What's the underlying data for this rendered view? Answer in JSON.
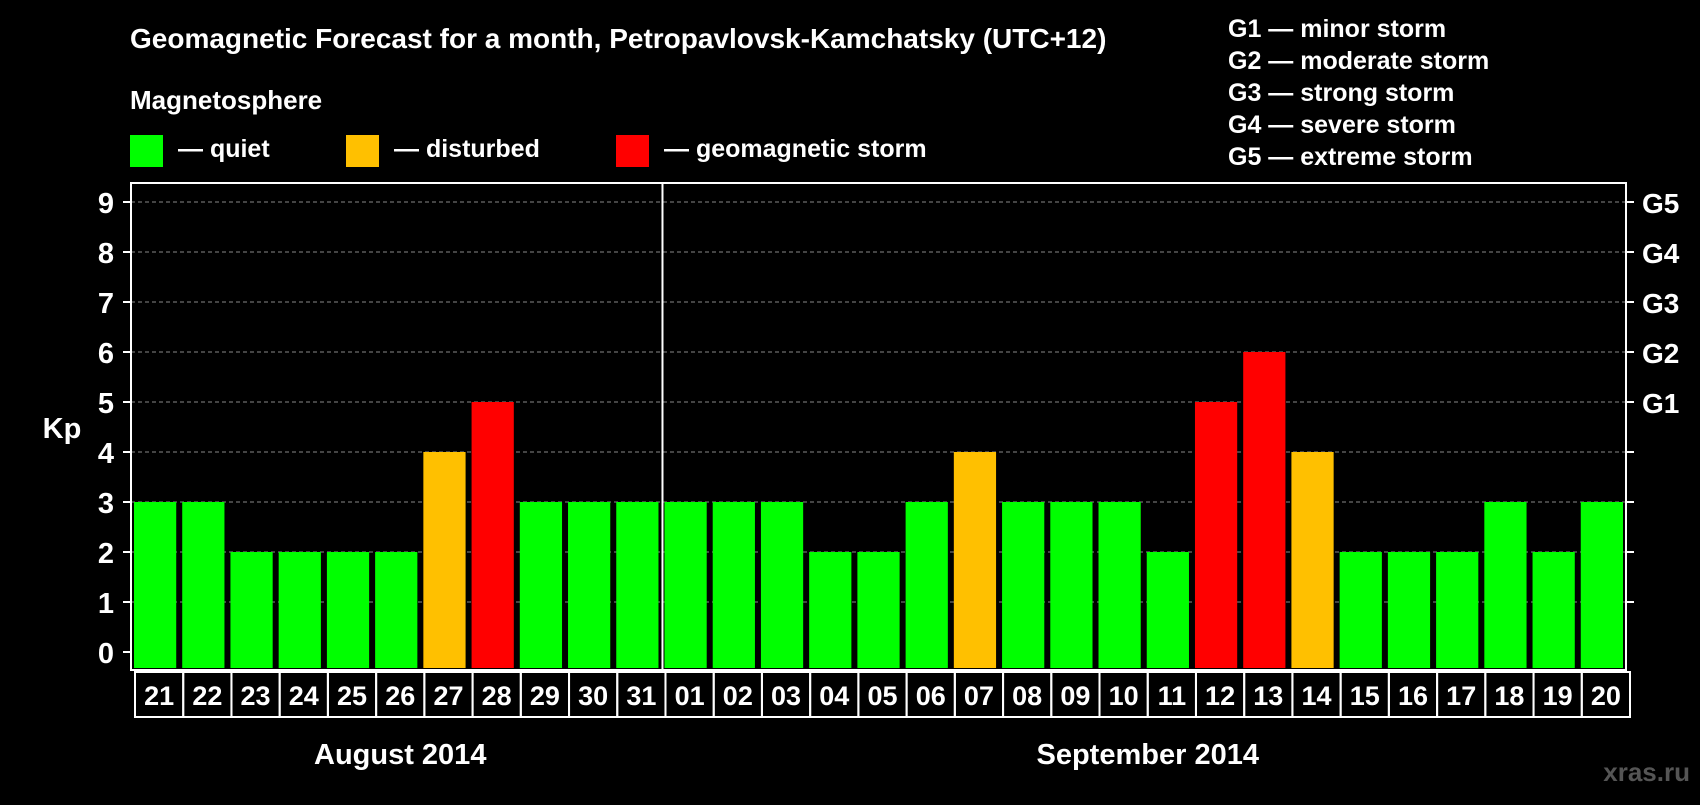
{
  "chart_data": {
    "type": "bar",
    "title": "Geomagnetic Forecast for a month, Petropavlovsk-Kamchatsky (UTC+12)",
    "legend_heading": "Magnetosphere",
    "legend": [
      {
        "label": "— quiet",
        "color": "#00ff00"
      },
      {
        "label": "— disturbed",
        "color": "#ffc000"
      },
      {
        "label": "— geomagnetic storm",
        "color": "#ff0000"
      }
    ],
    "storm_scale": [
      "G1 — minor storm",
      "G2 — moderate storm",
      "G3 — strong storm",
      "G4 — severe storm",
      "G5 — extreme storm"
    ],
    "ylabel": "Kp",
    "ylim": [
      0,
      9
    ],
    "y_ticks": [
      0,
      1,
      2,
      3,
      4,
      5,
      6,
      7,
      8,
      9
    ],
    "right_ticks": [
      {
        "value": 5,
        "label": "G1"
      },
      {
        "value": 6,
        "label": "G2"
      },
      {
        "value": 7,
        "label": "G3"
      },
      {
        "value": 8,
        "label": "G4"
      },
      {
        "value": 9,
        "label": "G5"
      }
    ],
    "grid": true,
    "categories": [
      "21",
      "22",
      "23",
      "24",
      "25",
      "26",
      "27",
      "28",
      "29",
      "30",
      "31",
      "01",
      "02",
      "03",
      "04",
      "05",
      "06",
      "07",
      "08",
      "09",
      "10",
      "11",
      "12",
      "13",
      "14",
      "15",
      "16",
      "17",
      "18",
      "19",
      "20"
    ],
    "values": [
      3,
      3,
      2,
      2,
      2,
      2,
      4,
      5,
      3,
      3,
      3,
      3,
      3,
      3,
      2,
      2,
      3,
      4,
      3,
      3,
      3,
      2,
      5,
      6,
      4,
      2,
      2,
      2,
      3,
      2,
      3
    ],
    "month_groups": [
      {
        "label": "August 2014",
        "count": 11
      },
      {
        "label": "September 2014",
        "count": 20
      }
    ],
    "colors": {
      "quiet": "#00ff00",
      "disturbed": "#ffc000",
      "storm": "#ff0000",
      "grid": "#888888",
      "axis": "#ffffff"
    }
  },
  "watermark": "xras.ru"
}
